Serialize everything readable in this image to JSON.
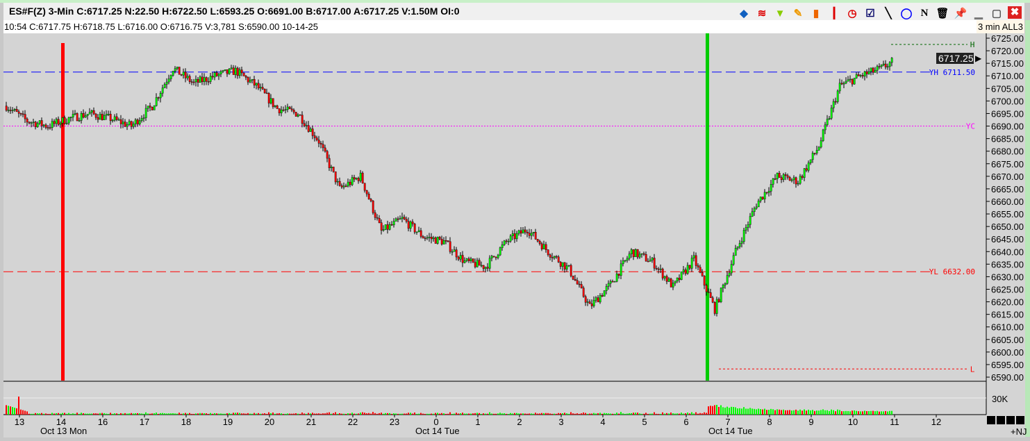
{
  "header": {
    "quote": "ES#F(Z)  3-Min  C:6717.25  N:22.50  H:6722.50  L:6593.25  O:6691.00  B:6717.00  A:6717.25  V:1.50M  OI:0",
    "bar_info": "10:54  C:6717.75  H:6718.75  L:6716.00  O:6716.75  V:3,781  S:6590.00  10-14-25",
    "interval": "3 min ALL3"
  },
  "toolbar": {
    "icons": [
      "objects-icon",
      "studies-icon",
      "filter-icon",
      "pencil-icon",
      "bar-chart-icon",
      "candle-icon",
      "clock-icon",
      "checklist-icon",
      "draw-line-icon",
      "circle-tool-icon",
      "n-icon",
      "trash-icon",
      "pin-icon",
      "minimize-icon",
      "maximize-icon",
      "close-icon"
    ]
  },
  "footer": {
    "badge": "+NJ"
  },
  "colors": {
    "up": "#00ff00",
    "down": "#ff0000",
    "background": "#d4d4d4",
    "yh": "#0000ff",
    "yl": "#ff0000",
    "yc": "#ff00ff",
    "h": "#006600"
  },
  "chart_data": {
    "type": "candlestick",
    "symbol": "ES#F(Z)",
    "interval": "3-Min",
    "ylim": [
      6587,
      6728
    ],
    "y_ticks": [
      "6725.00",
      "6720.00",
      "6715.00",
      "6710.00",
      "6705.00",
      "6700.00",
      "6695.00",
      "6690.00",
      "6685.00",
      "6680.00",
      "6675.00",
      "6670.00",
      "6665.00",
      "6660.00",
      "6655.00",
      "6650.00",
      "6645.00",
      "6640.00",
      "6635.00",
      "6630.00",
      "6625.00",
      "6620.00",
      "6615.00",
      "6610.00",
      "6605.00",
      "6600.00",
      "6595.00",
      "6590.00"
    ],
    "x_ticks": [
      "13",
      "14",
      "16",
      "17",
      "18",
      "19",
      "20",
      "21",
      "22",
      "23",
      "0",
      "1",
      "2",
      "3",
      "4",
      "5",
      "6",
      "7",
      "8",
      "9",
      "10",
      "11",
      "12"
    ],
    "date_labels": [
      {
        "text": "Oct 13 Mon",
        "at": "14"
      },
      {
        "text": "Oct 14 Tue",
        "at": "0"
      },
      {
        "text": "Oct 14 Tue",
        "at": "7"
      }
    ],
    "approx_close_half_hourly": [
      6698,
      6692,
      6690,
      6693,
      6695,
      6693,
      6690,
      6698,
      6713,
      6707,
      6710,
      6712,
      6706,
      6697,
      6695,
      6684,
      6665,
      6670,
      6648,
      6653,
      6646,
      6644,
      6636,
      6634,
      6644,
      6649,
      6640,
      6633,
      6618,
      6627,
      6640,
      6636,
      6626,
      6637,
      6617,
      6640,
      6659,
      6670,
      6668,
      6682,
      6706,
      6710,
      6713,
      6718
    ],
    "last_price": "6717.25",
    "levels": [
      {
        "label": "YH 6711.50",
        "value": 6711.5,
        "style": "dashed",
        "color": "#0000ff"
      },
      {
        "label": "YL 6632.00",
        "value": 6632,
        "style": "dashed",
        "color": "#ff0000"
      },
      {
        "label": "YC",
        "value": 6690,
        "style": "dotted",
        "color": "#ff00ff"
      },
      {
        "label": "H",
        "value": 6722.5,
        "style": "dotted",
        "color": "#006600"
      },
      {
        "label": "L",
        "value": 6593.25,
        "style": "dotted",
        "color": "#ff0000"
      }
    ],
    "session_markers": [
      {
        "at": "14",
        "color": "#ff0000"
      },
      {
        "at": "6:30",
        "color": "#00cc00"
      }
    ],
    "volume_axis_label": "30K"
  }
}
